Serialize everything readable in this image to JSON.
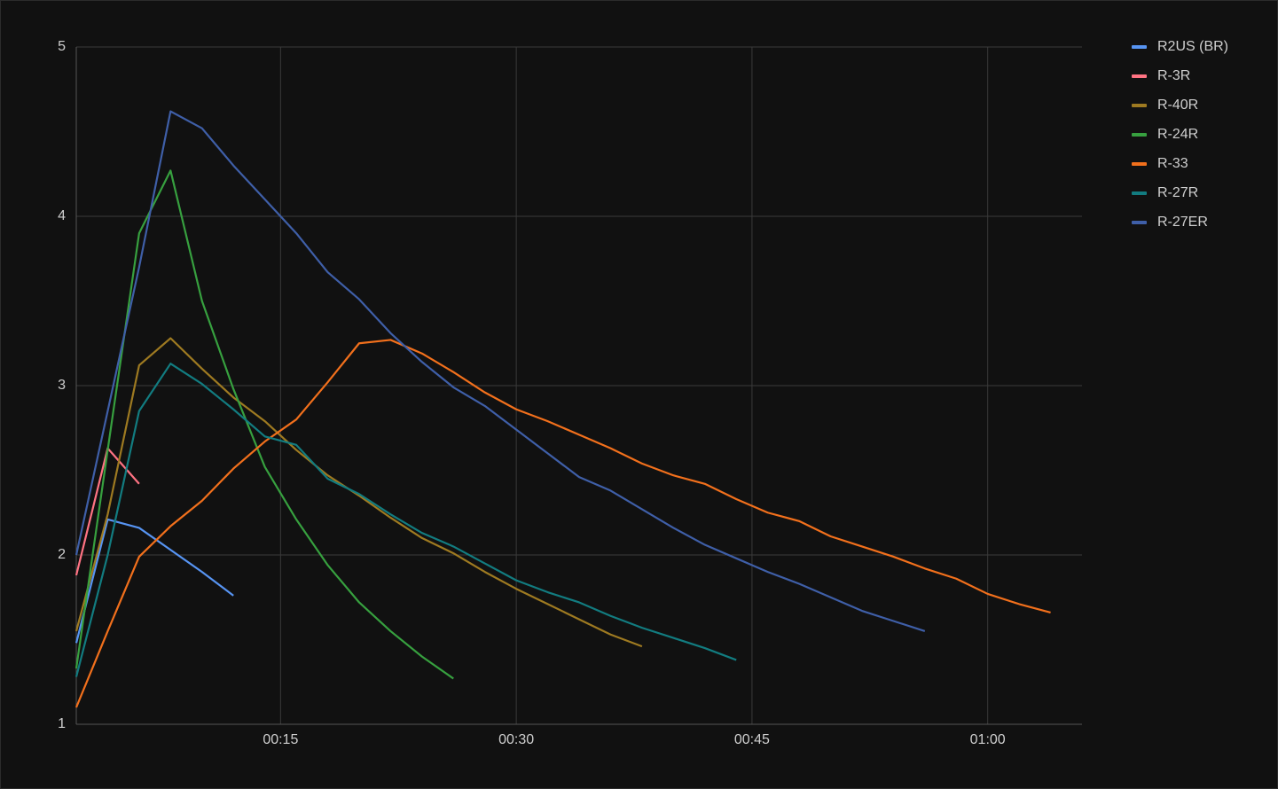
{
  "chart_data": {
    "type": "line",
    "xlim": [
      2,
      66
    ],
    "ylim": [
      1,
      5
    ],
    "xticks": [
      {
        "value": 15,
        "label": "00:15"
      },
      {
        "value": 30,
        "label": "00:30"
      },
      {
        "value": 45,
        "label": "00:45"
      },
      {
        "value": 60,
        "label": "01:00"
      }
    ],
    "yticks": [
      1,
      2,
      3,
      4,
      5
    ],
    "grid": true,
    "legend": "right",
    "series": [
      {
        "name": "R2US (BR)",
        "color": "#5794f2",
        "x": [
          2,
          4,
          6,
          8,
          10,
          12
        ],
        "values": [
          1.48,
          2.21,
          2.16,
          2.03,
          1.9,
          1.76
        ]
      },
      {
        "name": "R-3R",
        "color": "#ff7383",
        "x": [
          2,
          4,
          6
        ],
        "values": [
          1.88,
          2.63,
          2.42
        ]
      },
      {
        "name": "R-40R",
        "color": "#9e7a21",
        "x": [
          2,
          4,
          6,
          8,
          10,
          12,
          14,
          16,
          18,
          20,
          22,
          24,
          26,
          28,
          30,
          32,
          34,
          36,
          38
        ],
        "values": [
          1.55,
          2.24,
          3.12,
          3.28,
          3.1,
          2.93,
          2.79,
          2.62,
          2.47,
          2.35,
          2.22,
          2.1,
          2.01,
          1.9,
          1.8,
          1.71,
          1.62,
          1.53,
          1.46
        ]
      },
      {
        "name": "R-24R",
        "color": "#37a03f",
        "x": [
          2,
          4,
          6,
          8,
          10,
          12,
          14,
          16,
          18,
          20,
          22,
          24,
          26
        ],
        "values": [
          1.33,
          2.62,
          3.9,
          4.27,
          3.5,
          2.98,
          2.52,
          2.21,
          1.94,
          1.72,
          1.55,
          1.4,
          1.27
        ]
      },
      {
        "name": "R-33",
        "color": "#f2701c",
        "x": [
          2,
          4,
          6,
          8,
          10,
          12,
          14,
          16,
          18,
          20,
          22,
          24,
          26,
          28,
          30,
          32,
          34,
          36,
          38,
          40,
          42,
          44,
          46,
          48,
          50,
          52,
          54,
          56,
          58,
          60,
          62,
          64
        ],
        "values": [
          1.1,
          1.55,
          1.99,
          2.17,
          2.32,
          2.51,
          2.67,
          2.8,
          3.02,
          3.25,
          3.27,
          3.19,
          3.08,
          2.96,
          2.86,
          2.79,
          2.71,
          2.63,
          2.54,
          2.47,
          2.42,
          2.33,
          2.25,
          2.2,
          2.11,
          2.05,
          1.99,
          1.92,
          1.86,
          1.77,
          1.71,
          1.66
        ]
      },
      {
        "name": "R-27R",
        "color": "#127c80",
        "x": [
          2,
          4,
          6,
          8,
          10,
          12,
          14,
          16,
          18,
          20,
          22,
          24,
          26,
          28,
          30,
          32,
          34,
          36,
          38,
          40,
          42,
          44
        ],
        "values": [
          1.28,
          2.0,
          2.85,
          3.13,
          3.01,
          2.86,
          2.7,
          2.65,
          2.45,
          2.36,
          2.24,
          2.13,
          2.05,
          1.95,
          1.85,
          1.78,
          1.72,
          1.64,
          1.57,
          1.51,
          1.45,
          1.38
        ]
      },
      {
        "name": "R-27ER",
        "color": "#3f5fa8",
        "x": [
          2,
          4,
          6,
          8,
          10,
          12,
          14,
          16,
          18,
          20,
          22,
          24,
          26,
          28,
          30,
          32,
          34,
          36,
          38,
          40,
          42,
          44,
          46,
          48,
          50,
          52,
          54,
          56
        ],
        "values": [
          2.0,
          2.85,
          3.7,
          4.62,
          4.52,
          4.3,
          4.1,
          3.9,
          3.67,
          3.51,
          3.31,
          3.14,
          2.99,
          2.88,
          2.74,
          2.6,
          2.46,
          2.38,
          2.27,
          2.16,
          2.06,
          1.98,
          1.9,
          1.83,
          1.75,
          1.67,
          1.61,
          1.55
        ]
      }
    ]
  }
}
